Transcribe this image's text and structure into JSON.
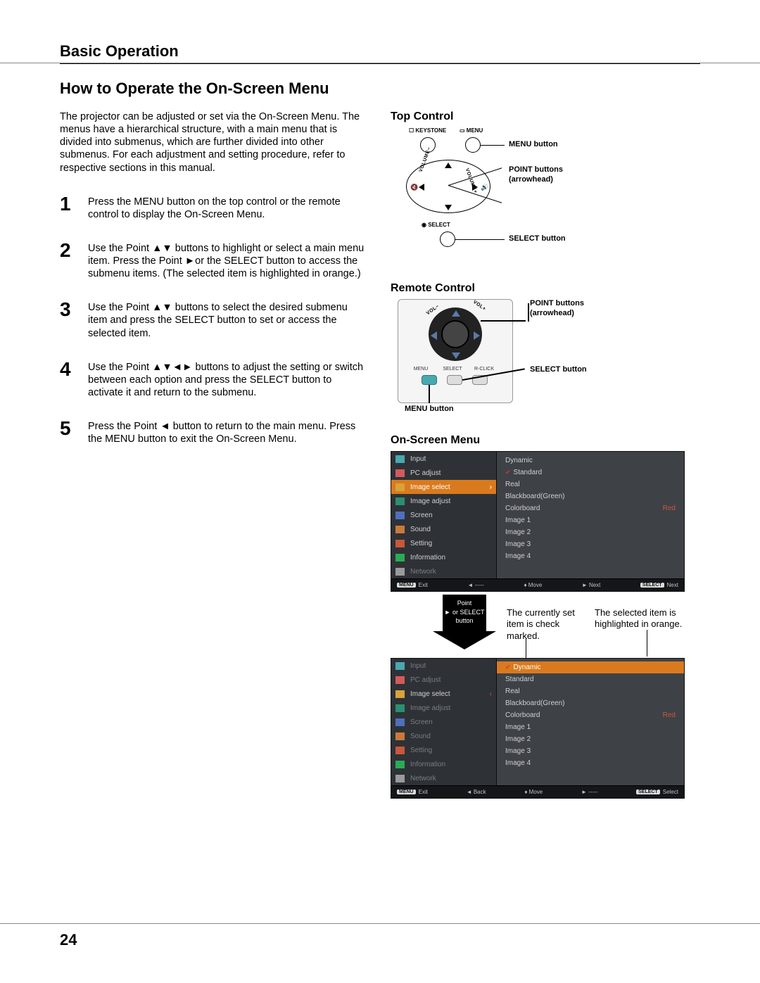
{
  "header": {
    "section": "Basic Operation",
    "title": "How to Operate the On-Screen Menu"
  },
  "intro": "The projector can be adjusted or set via the On-Screen Menu. The menus have a hierarchical structure, with a main menu that is divided into submenus, which are further divided into other submenus. For each adjustment and setting procedure, refer to respective sections in this manual.",
  "steps": [
    {
      "n": "1",
      "t": "Press the MENU button on the top control or the remote control to display the On-Screen Menu."
    },
    {
      "n": "2",
      "t": "Use the Point ▲▼ buttons to highlight or select a main menu item. Press the Point ►or the SELECT button to access the submenu items. (The selected item is highlighted in orange.)"
    },
    {
      "n": "3",
      "t": "Use the Point ▲▼ buttons to select the desired submenu item and press the SELECT button to set or access the selected item."
    },
    {
      "n": "4",
      "t": "Use the Point ▲▼◄► buttons to adjust the setting or switch between each option and press the SELECT button to activate it and return to the submenu."
    },
    {
      "n": "5",
      "t": "Press the Point ◄ button to return to the main menu. Press the MENU button to exit the On-Screen Menu."
    }
  ],
  "top_control": {
    "heading": "Top Control",
    "keystone": "KEYSTONE",
    "menu_small": "MENU",
    "select_small": "SELECT",
    "labels": {
      "menu": "MENU button",
      "point": "POINT buttons",
      "point2": "(arrowhead)",
      "select": "SELECT button"
    },
    "vol_minus": "VOLUME−",
    "vol_plus": "VOLUME+"
  },
  "remote_control": {
    "heading": "Remote Control",
    "btn_labels": [
      "MENU",
      "SELECT",
      "R-CLICK"
    ],
    "labels": {
      "point": "POINT buttons",
      "point2": "(arrowhead)",
      "select": "SELECT button",
      "menu": "MENU button"
    },
    "vol": "VOL"
  },
  "osm": {
    "heading": "On-Screen Menu",
    "arrow_label_1": "Point",
    "arrow_label_2": "► or SELECT",
    "arrow_label_3": "button",
    "callout_left": "The currently set item is check marked.",
    "callout_right": "The selected item is highlighted in orange.",
    "menu1": {
      "left": [
        {
          "l": "Input",
          "icon": "#4aa8b0"
        },
        {
          "l": "PC adjust",
          "icon": "#d45a5a"
        },
        {
          "l": "Image select",
          "icon": "#d9a23a",
          "hl": true,
          "chev": ">"
        },
        {
          "l": "Image adjust",
          "icon": "#2b8f6f"
        },
        {
          "l": "Screen",
          "icon": "#4f6fbf"
        },
        {
          "l": "Sound",
          "icon": "#c97a3a"
        },
        {
          "l": "Setting",
          "icon": "#c9573a"
        },
        {
          "l": "Information",
          "icon": "#2baa55"
        },
        {
          "l": "Network",
          "icon": "#9a9a9a",
          "dark": true
        }
      ],
      "right": [
        {
          "l": "Dynamic"
        },
        {
          "l": "Standard",
          "chk": true
        },
        {
          "l": "Real"
        },
        {
          "l": "Blackboard(Green)"
        },
        {
          "l": "Colorboard",
          "r": "Red"
        },
        {
          "l": "Image 1"
        },
        {
          "l": "Image 2"
        },
        {
          "l": "Image 3"
        },
        {
          "l": "Image 4"
        }
      ],
      "footer": [
        {
          "b": "MENU",
          "t": "Exit"
        },
        {
          "t": "◄ -----"
        },
        {
          "t": "♦ Move"
        },
        {
          "t": "► Next"
        },
        {
          "b": "SELECT",
          "t": "Next"
        }
      ]
    },
    "menu2": {
      "left": [
        {
          "l": "Input",
          "icon": "#4aa8b0",
          "dark": true
        },
        {
          "l": "PC adjust",
          "icon": "#d45a5a",
          "dark": true
        },
        {
          "l": "Image select",
          "icon": "#d9a23a",
          "chev": "<"
        },
        {
          "l": "Image adjust",
          "icon": "#2b8f6f",
          "dark": true
        },
        {
          "l": "Screen",
          "icon": "#4f6fbf",
          "dark": true
        },
        {
          "l": "Sound",
          "icon": "#c97a3a",
          "dark": true
        },
        {
          "l": "Setting",
          "icon": "#c9573a",
          "dark": true
        },
        {
          "l": "Information",
          "icon": "#2baa55",
          "dark": true
        },
        {
          "l": "Network",
          "icon": "#9a9a9a",
          "dark": true
        }
      ],
      "right": [
        {
          "l": "Dynamic",
          "hl": true,
          "chk": true
        },
        {
          "l": "Standard"
        },
        {
          "l": "Real"
        },
        {
          "l": "Blackboard(Green)"
        },
        {
          "l": "Colorboard",
          "r": "Red"
        },
        {
          "l": "Image 1"
        },
        {
          "l": "Image 2"
        },
        {
          "l": "Image 3"
        },
        {
          "l": "Image 4"
        }
      ],
      "footer": [
        {
          "b": "MENU",
          "t": "Exit"
        },
        {
          "t": "◄ Back"
        },
        {
          "t": "♦ Move"
        },
        {
          "t": "► -----"
        },
        {
          "b": "SELECT",
          "t": "Select"
        }
      ]
    }
  },
  "page_number": "24"
}
